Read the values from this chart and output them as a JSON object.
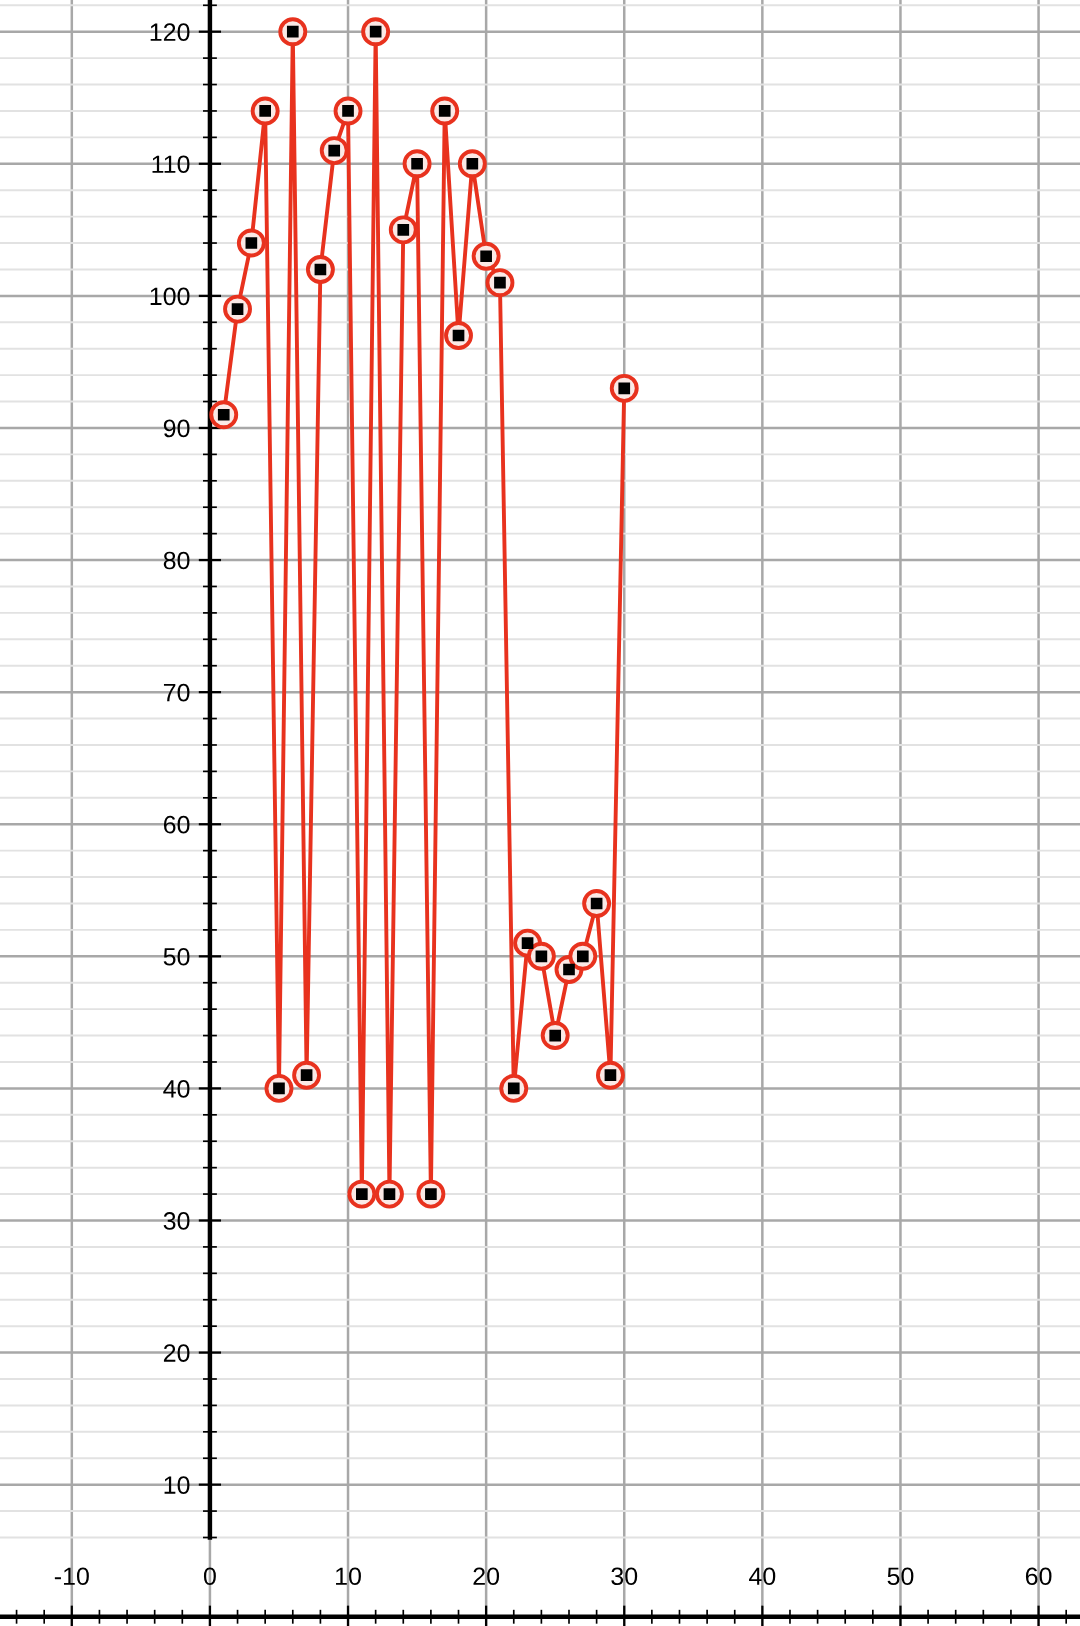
{
  "chart_data": {
    "type": "line",
    "x": [
      1,
      2,
      3,
      4,
      5,
      6,
      7,
      8,
      9,
      10,
      11,
      12,
      13,
      14,
      15,
      16,
      17,
      18,
      19,
      20,
      21,
      22,
      23,
      24,
      25,
      26,
      27,
      28,
      29,
      30
    ],
    "series": [
      {
        "color": "#e8321e",
        "values": [
          91,
          99,
          104,
          114,
          40,
          120,
          41,
          102,
          111,
          114,
          32,
          120,
          32,
          105,
          110,
          32,
          114,
          97,
          110,
          103,
          101,
          40,
          51,
          50,
          44,
          49,
          50,
          54,
          41,
          93
        ]
      }
    ],
    "xlim": [
      -15.2,
      63
    ],
    "ylim": [
      -0.7,
      122.4
    ],
    "xticks": [
      -10,
      0,
      10,
      20,
      30,
      40,
      50,
      60
    ],
    "yticks": [
      {
        "value": 0,
        "label": null
      },
      10,
      20,
      30,
      40,
      50,
      60,
      70,
      80,
      90,
      100,
      110,
      120
    ],
    "grid": true,
    "marker": "circle",
    "line_style": "solid",
    "legend": false
  }
}
